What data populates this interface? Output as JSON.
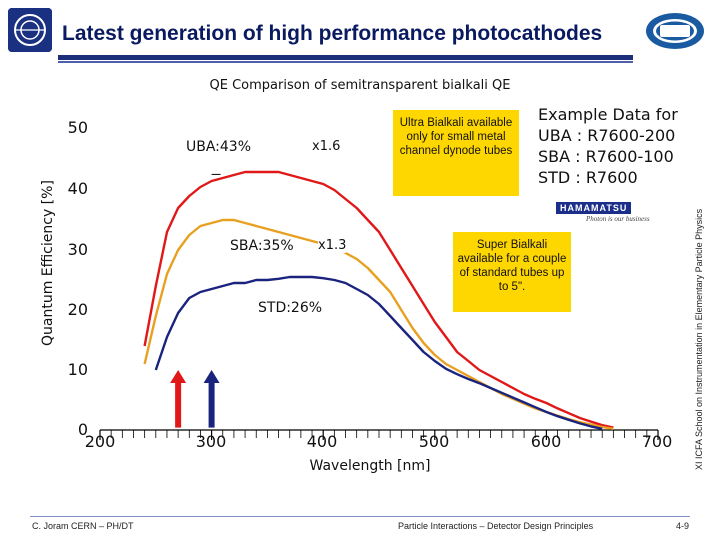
{
  "header": {
    "title": "Latest generation of high performance photocathodes",
    "subtitle": "QE Comparison of semitransparent bialkali QE",
    "left_logo": "cern-logo",
    "right_logo": "icfa-logo"
  },
  "chart_data": {
    "type": "line",
    "xlabel": "Wavelength [nm]",
    "ylabel": "Quantum Efficiency [%]",
    "xlim": [
      200,
      700
    ],
    "ylim": [
      0,
      50
    ],
    "xticks": [
      "200",
      "300",
      "400",
      "500",
      "600",
      "700"
    ],
    "yticks": [
      "0",
      "10",
      "20",
      "30",
      "40",
      "50"
    ],
    "grid": false,
    "series": [
      {
        "name": "UBA:43%",
        "color": "#e01818",
        "x": [
          240,
          250,
          260,
          270,
          280,
          290,
          300,
          310,
          320,
          330,
          340,
          350,
          360,
          370,
          380,
          390,
          400,
          410,
          420,
          430,
          440,
          450,
          460,
          470,
          480,
          490,
          500,
          510,
          520,
          530,
          540,
          550,
          560,
          570,
          580,
          590,
          600,
          610,
          620,
          630,
          640,
          650,
          660
        ],
        "y": [
          14,
          24,
          33,
          37,
          39,
          40.5,
          41.5,
          42,
          42.5,
          43,
          43,
          43,
          43,
          42.5,
          42,
          41.5,
          41,
          40,
          38.5,
          37,
          35,
          33,
          30,
          27,
          24,
          21,
          18,
          15.5,
          13,
          11.5,
          10,
          9,
          8,
          7,
          6,
          5.2,
          4.5,
          3.6,
          2.8,
          2,
          1.4,
          0.8,
          0.4
        ]
      },
      {
        "name": "SBA:35%",
        "color": "#e8a020",
        "x": [
          240,
          250,
          260,
          270,
          280,
          290,
          300,
          310,
          320,
          330,
          340,
          350,
          360,
          370,
          380,
          390,
          400,
          410,
          420,
          430,
          440,
          450,
          460,
          470,
          480,
          490,
          500,
          510,
          520,
          530,
          540,
          550,
          560,
          570,
          580,
          590,
          600,
          610,
          620,
          630,
          640,
          650,
          660
        ],
        "y": [
          11,
          19,
          26,
          30,
          32.5,
          34,
          34.5,
          35,
          35,
          34.5,
          34,
          33.5,
          33,
          32.5,
          32,
          31.5,
          31,
          30.5,
          29.5,
          28.5,
          27,
          25,
          23,
          20,
          17,
          14.5,
          12.5,
          11,
          10,
          9,
          8,
          7,
          6,
          5.2,
          4.4,
          3.6,
          3,
          2.4,
          1.8,
          1.3,
          0.9,
          0.5,
          0.2
        ]
      },
      {
        "name": "STD:26%",
        "color": "#1a237e",
        "x": [
          250,
          260,
          270,
          280,
          290,
          300,
          310,
          320,
          330,
          340,
          350,
          360,
          370,
          380,
          390,
          400,
          410,
          420,
          430,
          440,
          450,
          460,
          470,
          480,
          490,
          500,
          510,
          520,
          530,
          540,
          550,
          560,
          570,
          580,
          590,
          600,
          610,
          620,
          630,
          640,
          650
        ],
        "y": [
          10,
          15.5,
          19.5,
          22,
          23,
          23.5,
          24,
          24.5,
          24.5,
          25,
          25,
          25.2,
          25.5,
          25.5,
          25.5,
          25.3,
          25,
          24.5,
          23.5,
          22.5,
          21,
          19,
          17,
          15,
          13,
          11.5,
          10.2,
          9.3,
          8.5,
          7.8,
          7,
          6.2,
          5.4,
          4.6,
          3.8,
          3,
          2.3,
          1.7,
          1.1,
          0.6,
          0.2
        ]
      }
    ],
    "annotations": [
      {
        "text": "UBA:43%",
        "x": 285,
        "y": 43
      },
      {
        "text": "x1.6",
        "x": 345,
        "y": 43
      },
      {
        "text": "SBA:35%",
        "x": 280,
        "y": 30
      },
      {
        "text": "x1.3",
        "x": 340,
        "y": 30
      },
      {
        "text": "STD:26%",
        "x": 300,
        "y": 20
      }
    ],
    "arrows": [
      {
        "x": 270,
        "color": "#e01818",
        "from_y": 0.4,
        "to_y": 10
      },
      {
        "x": 300,
        "color": "#1a237e",
        "from_y": 0.4,
        "to_y": 10
      }
    ]
  },
  "notes": {
    "ultra": "Ultra Bialkali available only for small metal channel dynode tubes",
    "super": "Super Bialkali available for a couple of standard tubes up to 5\".",
    "example_lines": [
      "Example Data for",
      "UBA : R7600-200",
      "SBA : R7600-100",
      "STD : R7600"
    ],
    "vendor_logo": "HAMAMATSU",
    "vendor_tagline": "Photon is our business"
  },
  "footer": {
    "author": "C. Joram   CERN – PH/DT",
    "course": "Particle Interactions – Detector Design Principles",
    "page": "4-9",
    "side": "XI ICFA School on Instrumentation in Elementary Particle Physics"
  },
  "colors": {
    "title": "#0a1a60",
    "note_fill": "#ffd700"
  }
}
